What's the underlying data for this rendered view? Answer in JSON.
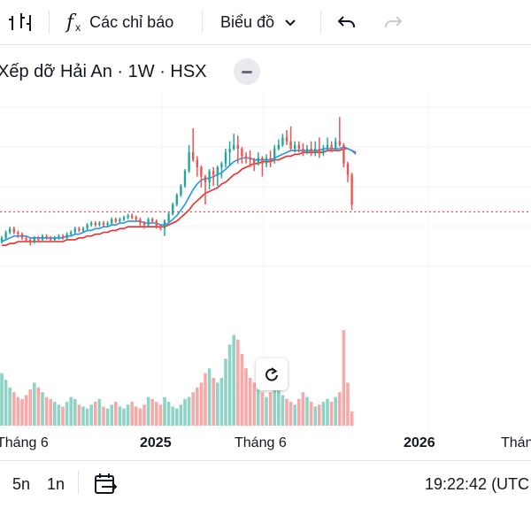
{
  "toolbar": {
    "indicators_label": "Các chỉ báo",
    "chart_type_label": "Biểu đồ"
  },
  "header": {
    "title": "Xếp dỡ Hải An · 1W · HSX"
  },
  "xaxis": {
    "labels": [
      "Tháng 6",
      "2025",
      "Tháng 6",
      "2026",
      "Tháng"
    ]
  },
  "bottom": {
    "ranges": [
      "5n",
      "1n"
    ],
    "clock": "19:22:42 (UTC"
  },
  "colors": {
    "up": "#26a69a",
    "down": "#ef5350",
    "volume_up": "#8fd3c7",
    "volume_down": "#f7a9a8",
    "ma_fast": "#2196f3",
    "ma_slow": "#ef2b2b",
    "price_line": "#ef5350"
  },
  "chart_data": {
    "type": "candlestick",
    "title": "Xếp dỡ Hải An · 1W · HSX",
    "xlabel": "",
    "ylabel": "",
    "x_tick_labels": [
      "Tháng 6",
      "2025",
      "Tháng 6",
      "2026",
      "Tháng"
    ],
    "ylim": [
      0,
      100
    ],
    "volume_ylim": [
      0,
      100
    ],
    "current_price_level": 46,
    "candles": [
      {
        "o": 30,
        "c": 32,
        "h": 33,
        "l": 29
      },
      {
        "o": 32,
        "c": 35,
        "h": 36,
        "l": 31
      },
      {
        "o": 35,
        "c": 37,
        "h": 38,
        "l": 34
      },
      {
        "o": 37,
        "c": 35,
        "h": 38,
        "l": 34
      },
      {
        "o": 35,
        "c": 34,
        "h": 36,
        "l": 32
      },
      {
        "o": 34,
        "c": 32,
        "h": 35,
        "l": 31
      },
      {
        "o": 32,
        "c": 31,
        "h": 33,
        "l": 30
      },
      {
        "o": 31,
        "c": 30,
        "h": 32,
        "l": 28
      },
      {
        "o": 30,
        "c": 32,
        "h": 33,
        "l": 29
      },
      {
        "o": 32,
        "c": 31,
        "h": 33,
        "l": 30
      },
      {
        "o": 31,
        "c": 33,
        "h": 34,
        "l": 30
      },
      {
        "o": 33,
        "c": 32,
        "h": 34,
        "l": 31
      },
      {
        "o": 32,
        "c": 31,
        "h": 33,
        "l": 30
      },
      {
        "o": 31,
        "c": 32,
        "h": 33,
        "l": 30
      },
      {
        "o": 32,
        "c": 33,
        "h": 34,
        "l": 31
      },
      {
        "o": 33,
        "c": 32,
        "h": 34,
        "l": 31
      },
      {
        "o": 32,
        "c": 34,
        "h": 35,
        "l": 31
      },
      {
        "o": 34,
        "c": 35,
        "h": 36,
        "l": 33
      },
      {
        "o": 35,
        "c": 37,
        "h": 38,
        "l": 34
      },
      {
        "o": 37,
        "c": 36,
        "h": 38,
        "l": 35
      },
      {
        "o": 36,
        "c": 37,
        "h": 38,
        "l": 35
      },
      {
        "o": 37,
        "c": 39,
        "h": 40,
        "l": 36
      },
      {
        "o": 39,
        "c": 40,
        "h": 41,
        "l": 38
      },
      {
        "o": 40,
        "c": 39,
        "h": 41,
        "l": 38
      },
      {
        "o": 39,
        "c": 40,
        "h": 41,
        "l": 38
      },
      {
        "o": 40,
        "c": 39,
        "h": 41,
        "l": 38
      },
      {
        "o": 39,
        "c": 40,
        "h": 41,
        "l": 38
      },
      {
        "o": 40,
        "c": 42,
        "h": 43,
        "l": 39
      },
      {
        "o": 42,
        "c": 41,
        "h": 43,
        "l": 40
      },
      {
        "o": 41,
        "c": 42,
        "h": 43,
        "l": 40
      },
      {
        "o": 42,
        "c": 43,
        "h": 44,
        "l": 41
      },
      {
        "o": 43,
        "c": 44,
        "h": 45,
        "l": 42
      },
      {
        "o": 44,
        "c": 43,
        "h": 45,
        "l": 42
      },
      {
        "o": 43,
        "c": 42,
        "h": 44,
        "l": 41
      },
      {
        "o": 42,
        "c": 40,
        "h": 43,
        "l": 38
      },
      {
        "o": 40,
        "c": 39,
        "h": 41,
        "l": 37
      },
      {
        "o": 39,
        "c": 42,
        "h": 43,
        "l": 38
      },
      {
        "o": 42,
        "c": 41,
        "h": 43,
        "l": 40
      },
      {
        "o": 41,
        "c": 38,
        "h": 42,
        "l": 37
      },
      {
        "o": 38,
        "c": 37,
        "h": 39,
        "l": 36
      },
      {
        "o": 37,
        "c": 41,
        "h": 42,
        "l": 33
      },
      {
        "o": 41,
        "c": 45,
        "h": 46,
        "l": 40
      },
      {
        "o": 45,
        "c": 50,
        "h": 51,
        "l": 44
      },
      {
        "o": 50,
        "c": 55,
        "h": 56,
        "l": 49
      },
      {
        "o": 55,
        "c": 60,
        "h": 61,
        "l": 54
      },
      {
        "o": 60,
        "c": 68,
        "h": 69,
        "l": 59
      },
      {
        "o": 68,
        "c": 78,
        "h": 82,
        "l": 67
      },
      {
        "o": 78,
        "c": 74,
        "h": 91,
        "l": 73
      },
      {
        "o": 74,
        "c": 70,
        "h": 76,
        "l": 65
      },
      {
        "o": 70,
        "c": 65,
        "h": 71,
        "l": 59
      },
      {
        "o": 65,
        "c": 62,
        "h": 66,
        "l": 50
      },
      {
        "o": 62,
        "c": 68,
        "h": 69,
        "l": 58
      },
      {
        "o": 68,
        "c": 66,
        "h": 70,
        "l": 60
      },
      {
        "o": 66,
        "c": 70,
        "h": 71,
        "l": 60
      },
      {
        "o": 70,
        "c": 72,
        "h": 73,
        "l": 64
      },
      {
        "o": 72,
        "c": 78,
        "h": 80,
        "l": 70
      },
      {
        "o": 78,
        "c": 80,
        "h": 84,
        "l": 71
      },
      {
        "o": 80,
        "c": 82,
        "h": 88,
        "l": 79
      },
      {
        "o": 82,
        "c": 80,
        "h": 87,
        "l": 72
      },
      {
        "o": 80,
        "c": 76,
        "h": 81,
        "l": 72
      },
      {
        "o": 76,
        "c": 75,
        "h": 78,
        "l": 72
      },
      {
        "o": 75,
        "c": 74,
        "h": 79,
        "l": 70
      },
      {
        "o": 74,
        "c": 72,
        "h": 75,
        "l": 68
      },
      {
        "o": 72,
        "c": 75,
        "h": 78,
        "l": 71
      },
      {
        "o": 75,
        "c": 72,
        "h": 76,
        "l": 65
      },
      {
        "o": 72,
        "c": 75,
        "h": 77,
        "l": 70
      },
      {
        "o": 75,
        "c": 74,
        "h": 79,
        "l": 70
      },
      {
        "o": 74,
        "c": 80,
        "h": 82,
        "l": 72
      },
      {
        "o": 80,
        "c": 82,
        "h": 85,
        "l": 79
      },
      {
        "o": 82,
        "c": 86,
        "h": 88,
        "l": 81
      },
      {
        "o": 86,
        "c": 84,
        "h": 90,
        "l": 82
      },
      {
        "o": 84,
        "c": 80,
        "h": 92,
        "l": 79
      },
      {
        "o": 80,
        "c": 82,
        "h": 84,
        "l": 78
      },
      {
        "o": 82,
        "c": 80,
        "h": 84,
        "l": 78
      },
      {
        "o": 80,
        "c": 78,
        "h": 83,
        "l": 76
      },
      {
        "o": 78,
        "c": 80,
        "h": 82,
        "l": 77
      },
      {
        "o": 80,
        "c": 78,
        "h": 84,
        "l": 76
      },
      {
        "o": 78,
        "c": 80,
        "h": 84,
        "l": 76
      },
      {
        "o": 80,
        "c": 78,
        "h": 86,
        "l": 75
      },
      {
        "o": 78,
        "c": 80,
        "h": 82,
        "l": 76
      },
      {
        "o": 80,
        "c": 82,
        "h": 86,
        "l": 79
      },
      {
        "o": 82,
        "c": 80,
        "h": 84,
        "l": 78
      },
      {
        "o": 80,
        "c": 84,
        "h": 86,
        "l": 79
      },
      {
        "o": 84,
        "c": 82,
        "h": 97,
        "l": 81
      },
      {
        "o": 82,
        "c": 72,
        "h": 83,
        "l": 70
      },
      {
        "o": 72,
        "c": 66,
        "h": 73,
        "l": 62
      },
      {
        "o": 66,
        "c": 50,
        "h": 67,
        "l": 47
      }
    ],
    "ma_fast": [
      30,
      31,
      32,
      33,
      33,
      33,
      33,
      32,
      32,
      32,
      32,
      32,
      32,
      32,
      32,
      32,
      33,
      33,
      34,
      34,
      35,
      36,
      36,
      37,
      37,
      38,
      38,
      39,
      39,
      40,
      40,
      41,
      41,
      41,
      41,
      40,
      40,
      40,
      40,
      39,
      39,
      40,
      42,
      44,
      47,
      50,
      54,
      58,
      61,
      63,
      64,
      64,
      65,
      66,
      67,
      69,
      71,
      73,
      74,
      75,
      75,
      75,
      74,
      74,
      74,
      74,
      74,
      75,
      76,
      77,
      78,
      79,
      79,
      79,
      79,
      79,
      79,
      79,
      79,
      80,
      80,
      80,
      80,
      80,
      81,
      80,
      79,
      77
    ],
    "ma_slow": [
      28,
      28,
      29,
      29,
      30,
      30,
      30,
      30,
      30,
      30,
      30,
      30,
      30,
      30,
      30,
      30,
      31,
      31,
      31,
      32,
      32,
      33,
      33,
      34,
      34,
      35,
      35,
      36,
      36,
      37,
      37,
      38,
      38,
      38,
      38,
      38,
      38,
      38,
      38,
      38,
      38,
      39,
      40,
      41,
      43,
      45,
      47,
      50,
      52,
      54,
      56,
      57,
      58,
      59,
      61,
      62,
      64,
      66,
      67,
      69,
      70,
      71,
      72,
      72,
      73,
      73,
      73,
      74,
      74,
      75,
      76,
      76,
      77,
      77,
      78,
      78,
      78,
      78,
      78,
      78,
      79,
      79,
      79,
      79,
      80,
      80,
      79,
      78
    ],
    "volume": [
      55,
      48,
      40,
      35,
      30,
      28,
      32,
      38,
      45,
      40,
      35,
      30,
      28,
      25,
      22,
      20,
      25,
      30,
      28,
      22,
      20,
      18,
      22,
      25,
      28,
      20,
      18,
      22,
      25,
      20,
      18,
      22,
      25,
      20,
      18,
      22,
      30,
      28,
      25,
      22,
      30,
      25,
      20,
      18,
      22,
      28,
      30,
      35,
      40,
      45,
      55,
      60,
      50,
      45,
      50,
      70,
      85,
      95,
      90,
      75,
      60,
      50,
      45,
      40,
      35,
      30,
      35,
      40,
      38,
      32,
      28,
      25,
      22,
      28,
      35,
      30,
      25,
      20,
      22,
      25,
      28,
      25,
      30,
      35,
      100,
      45,
      15,
      8
    ]
  }
}
